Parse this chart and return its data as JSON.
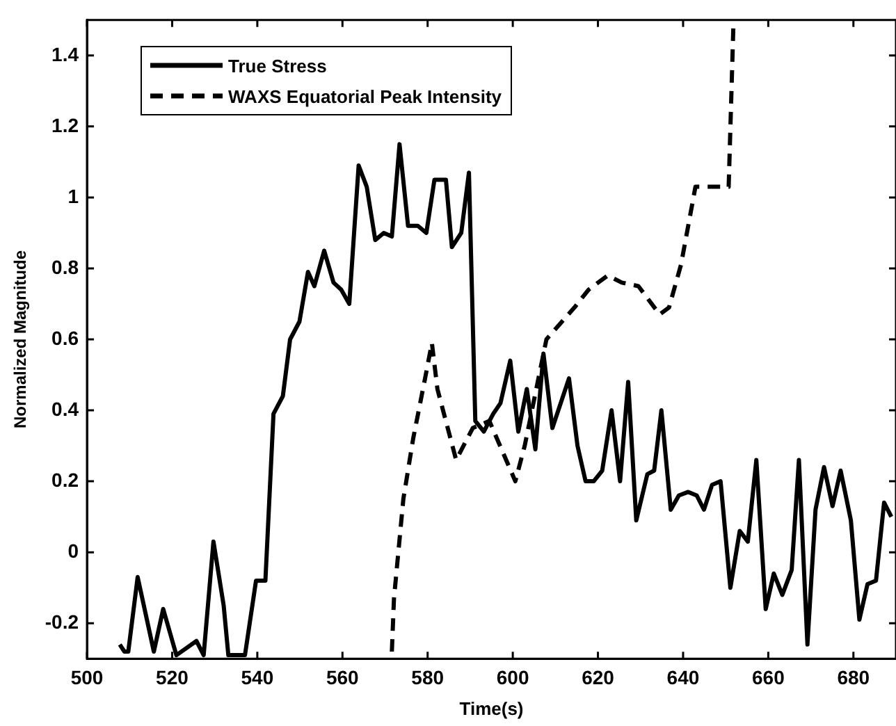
{
  "chart_data": {
    "type": "line",
    "xlabel": "Time(s)",
    "ylabel": "Normalized Magnitude",
    "xlim": [
      500,
      690
    ],
    "ylim": [
      -0.3,
      1.5
    ],
    "xticks": [
      500,
      520,
      540,
      560,
      580,
      600,
      620,
      640,
      660,
      680
    ],
    "yticks": [
      -0.2,
      0,
      0.2,
      0.4,
      0.6,
      0.8,
      1,
      1.2,
      1.4
    ],
    "grid": false,
    "legend": "top left",
    "marker": "none",
    "series": [
      {
        "name": "True Stress",
        "color": "#000000",
        "line_style": "solid",
        "x": [
          507.7,
          508.8,
          509.7,
          511.9,
          515.7,
          517.9,
          521,
          525.7,
          527.4,
          529.7,
          532.1,
          533.2,
          537.1,
          539.7,
          541.9,
          543.8,
          546,
          547.7,
          549.9,
          551.9,
          553.4,
          555.7,
          557.9,
          559.7,
          561.6,
          563.8,
          565.7,
          567.7,
          569.7,
          571.6,
          573.4,
          575.4,
          577.7,
          579.7,
          581.6,
          584.3,
          585.7,
          587.9,
          589.7,
          591.2,
          593.2,
          595.4,
          597.1,
          599.4,
          601.3,
          603.3,
          605.3,
          607.2,
          609.3,
          613.2,
          615.2,
          617.1,
          619,
          621,
          623.2,
          625.2,
          627.1,
          629,
          631.6,
          633.2,
          634.9,
          637.1,
          639,
          641.2,
          643.2,
          644.9,
          646.8,
          648.8,
          651.1,
          653.3,
          655.2,
          657.2,
          659.4,
          661.3,
          663.3,
          665.5,
          667.2,
          669.2,
          671.1,
          673.1,
          675.1,
          677,
          679.4,
          681.4,
          683.3,
          685.3,
          687.2,
          688.9
        ],
        "values": [
          -0.26,
          -0.28,
          -0.28,
          -0.07,
          -0.28,
          -0.16,
          -0.29,
          -0.25,
          -0.29,
          0.03,
          -0.15,
          -0.29,
          -0.29,
          -0.08,
          -0.08,
          0.39,
          0.44,
          0.6,
          0.65,
          0.79,
          0.75,
          0.85,
          0.76,
          0.74,
          0.7,
          1.09,
          1.03,
          0.88,
          0.9,
          0.89,
          1.15,
          0.92,
          0.92,
          0.9,
          1.05,
          1.05,
          0.86,
          0.9,
          1.07,
          0.37,
          0.34,
          0.39,
          0.42,
          0.54,
          0.34,
          0.46,
          0.29,
          0.56,
          0.35,
          0.49,
          0.3,
          0.2,
          0.2,
          0.23,
          0.4,
          0.2,
          0.48,
          0.09,
          0.22,
          0.23,
          0.4,
          0.12,
          0.16,
          0.17,
          0.16,
          0.12,
          0.19,
          0.2,
          -0.1,
          0.06,
          0.03,
          0.26,
          -0.16,
          -0.06,
          -0.12,
          -0.05,
          0.26,
          -0.26,
          0.12,
          0.24,
          0.13,
          0.23,
          0.09,
          -0.19,
          -0.09,
          -0.08,
          0.14,
          0.1
        ]
      },
      {
        "name": "WAXS Equatorial Peak Intensity",
        "color": "#000000",
        "line_style": "dashed",
        "x": [
          571.6,
          572.1,
          574.3,
          576.6,
          579.4,
          581,
          582.3,
          586.7,
          590.6,
          594.5,
          600.6,
          602.8,
          607.9,
          614.5,
          617.8,
          622.3,
          625.6,
          629.5,
          634.5,
          636.7,
          639.5,
          642.9,
          646.8,
          650.7,
          651.8
        ],
        "values": [
          -0.28,
          -0.13,
          0.15,
          0.32,
          0.49,
          0.59,
          0.46,
          0.26,
          0.35,
          0.37,
          0.2,
          0.3,
          0.6,
          0.69,
          0.74,
          0.78,
          0.76,
          0.75,
          0.67,
          0.69,
          0.81,
          1.03,
          1.03,
          1.03,
          1.48
        ]
      }
    ]
  }
}
